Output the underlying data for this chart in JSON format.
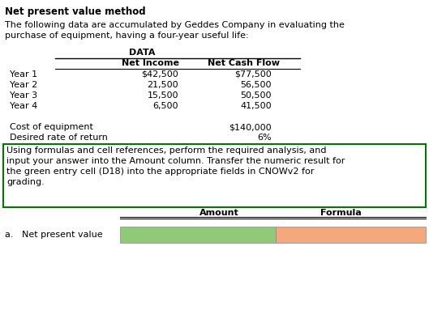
{
  "title": "Net present value method",
  "intro_line1": "The following data are accumulated by Geddes Company in evaluating the",
  "intro_line2": "purchase of equipment, having a four-year useful life:",
  "data_header": "DATA",
  "rows": [
    [
      "Year 1",
      "$42,500",
      "$77,500"
    ],
    [
      "Year 2",
      "21,500",
      "56,500"
    ],
    [
      "Year 3",
      "15,500",
      "50,500"
    ],
    [
      "Year 4",
      "6,500",
      "41,500"
    ]
  ],
  "cost_label": "Cost of equipment",
  "cost_value": "$140,000",
  "rate_label": "Desired rate of return",
  "rate_value": "6%",
  "instruction_line1": "Using formulas and cell references, perform the required analysis, and",
  "instruction_line2": "input your answer into the Amount column. Transfer the numeric result for",
  "instruction_line3": "the green entry cell (D18) into the appropriate fields in CNOWv2 for",
  "instruction_line4": "grading.",
  "bottom_col1": "Amount",
  "bottom_col2": "Formula",
  "row_label": "a.   Net present value",
  "green_color": "#90c978",
  "orange_color": "#f4a87c",
  "instruction_box_color": "#007700",
  "background": "#ffffff",
  "fs": 8.0,
  "title_fs": 8.5
}
